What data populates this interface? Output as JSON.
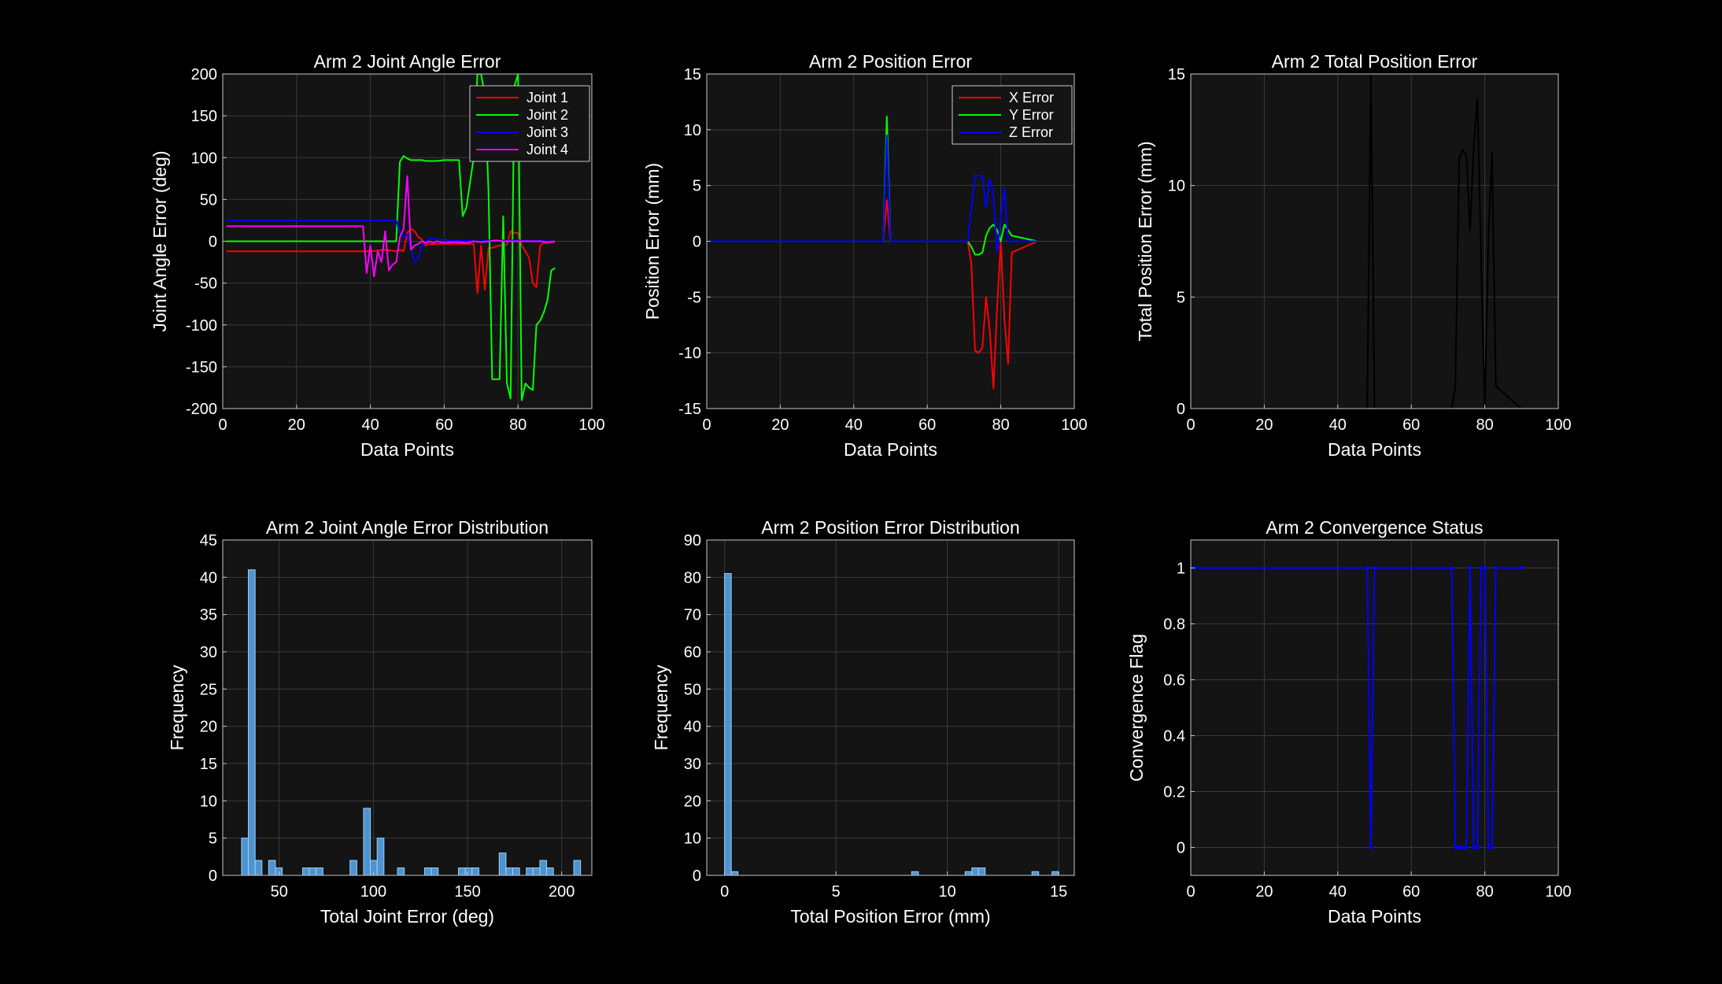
{
  "colors": {
    "background": "#000000",
    "axes_background": "#141414",
    "grid": "#3a3a3a",
    "axes_border": "#c8c8c8",
    "text": "#ffffff",
    "histogram_face": "#4d93d0",
    "histogram_edge": "#9fd0f5"
  },
  "chart_data": [
    {
      "type": "line",
      "title": "Arm 2 Joint Angle Error",
      "xlabel": "Data Points",
      "ylabel": "Joint Angle Error (deg)",
      "xlim": [
        0,
        100
      ],
      "ylim": [
        -200,
        200
      ],
      "xticks": [
        0,
        20,
        40,
        60,
        80,
        100
      ],
      "yticks": [
        -200,
        -150,
        -100,
        -50,
        0,
        50,
        100,
        150,
        200
      ],
      "grid": true,
      "legend": "top-right",
      "series": [
        {
          "name": "Joint 1",
          "color": "#ff0000",
          "x": [
            1,
            40,
            44,
            47,
            48,
            49,
            50,
            51,
            52,
            53,
            54,
            55,
            56,
            57,
            58,
            60,
            62,
            64,
            66,
            68,
            69,
            70,
            71,
            72,
            73,
            74,
            75,
            76,
            77,
            78,
            79,
            80,
            81,
            82,
            83,
            84,
            85,
            86,
            87,
            88,
            89,
            90
          ],
          "y": [
            -12,
            -12,
            -10,
            -12,
            -10,
            -12,
            10,
            15,
            12,
            5,
            2,
            -5,
            -3,
            -4,
            -3,
            -3,
            -3,
            -3,
            -3,
            -3,
            -62,
            -5,
            -58,
            -8,
            -8,
            -6,
            -5,
            -5,
            -4,
            12,
            10,
            10,
            -5,
            -12,
            -20,
            -50,
            -55,
            -5,
            -2,
            -2,
            -1,
            -1
          ]
        },
        {
          "name": "Joint 2",
          "color": "#00ff00",
          "x": [
            1,
            40,
            47,
            48,
            49,
            50,
            51,
            52,
            53,
            54,
            55,
            56,
            57,
            58,
            60,
            62,
            64,
            65,
            66,
            68,
            69,
            70,
            71,
            72,
            73,
            74,
            75,
            76,
            77,
            78,
            79,
            80,
            81,
            82,
            83,
            84,
            85,
            86,
            87,
            88,
            89,
            90
          ],
          "y": [
            0,
            0,
            0,
            95,
            102,
            99,
            97,
            97,
            97,
            97,
            96,
            96,
            96,
            96,
            97,
            97,
            97,
            30,
            40,
            100,
            200,
            200,
            175,
            60,
            -165,
            -165,
            -165,
            30,
            -170,
            -188,
            185,
            200,
            -190,
            -170,
            -175,
            -178,
            -100,
            -95,
            -85,
            -70,
            -35,
            -32
          ]
        },
        {
          "name": "Joint 3",
          "color": "#0000ff",
          "x": [
            1,
            47,
            48,
            49,
            50,
            51,
            52,
            53,
            54,
            55,
            56,
            57,
            58,
            60,
            62,
            64,
            66,
            68,
            70,
            72,
            74,
            76,
            78,
            80,
            82,
            84,
            86,
            88,
            90
          ],
          "y": [
            25,
            25,
            10,
            5,
            8,
            -10,
            -25,
            -20,
            -5,
            0,
            3,
            4,
            2,
            2,
            1,
            1,
            1,
            0,
            0,
            1,
            1,
            1,
            1,
            1,
            1,
            0,
            1,
            0,
            0
          ]
        },
        {
          "name": "Joint 4",
          "color": "#ff00ff",
          "x": [
            1,
            38,
            39,
            40,
            41,
            42,
            43,
            44,
            45,
            46,
            47,
            48,
            49,
            50,
            51,
            52,
            53,
            54,
            55,
            56,
            57,
            58,
            60,
            62,
            64,
            66,
            68,
            70,
            72,
            74,
            76,
            78,
            80,
            82,
            84,
            86,
            88,
            90
          ],
          "y": [
            18,
            18,
            -38,
            -5,
            -42,
            -12,
            -25,
            12,
            -35,
            -28,
            -25,
            5,
            15,
            78,
            -10,
            -5,
            -3,
            0,
            -2,
            0,
            -2,
            0,
            -2,
            -1,
            -1,
            -2,
            0,
            -1,
            0,
            1,
            0,
            0,
            0,
            0,
            0,
            0,
            -1,
            0
          ]
        }
      ]
    },
    {
      "type": "line",
      "title": "Arm 2 Position Error",
      "xlabel": "Data Points",
      "ylabel": "Position Error (mm)",
      "xlim": [
        0,
        100
      ],
      "ylim": [
        -15,
        15
      ],
      "xticks": [
        0,
        20,
        40,
        60,
        80,
        100
      ],
      "yticks": [
        -15,
        -10,
        -5,
        0,
        5,
        10,
        15
      ],
      "grid": true,
      "legend": "top-right",
      "series": [
        {
          "name": "X Error",
          "color": "#ff0000",
          "x": [
            1,
            48,
            49,
            50,
            71,
            72,
            73,
            74,
            75,
            76,
            77,
            78,
            79,
            80,
            81,
            82,
            83,
            90
          ],
          "y": [
            0,
            0,
            3.7,
            0,
            0,
            -2,
            -9.8,
            -10,
            -9.5,
            -5,
            -8,
            -13.2,
            -6,
            0,
            -7,
            -11,
            -1,
            0
          ]
        },
        {
          "name": "Y Error",
          "color": "#00ff00",
          "x": [
            1,
            48,
            49,
            50,
            71,
            72,
            73,
            74,
            75,
            76,
            77,
            78,
            79,
            80,
            81,
            82,
            83,
            90
          ],
          "y": [
            0,
            0,
            11.2,
            0,
            0,
            -0.5,
            -1.2,
            -1.2,
            -1,
            0.5,
            1.2,
            1.5,
            1,
            0,
            1.5,
            1,
            0.5,
            0
          ]
        },
        {
          "name": "Z Error",
          "color": "#0000ff",
          "x": [
            1,
            48,
            49,
            50,
            71,
            72,
            73,
            74,
            75,
            76,
            77,
            78,
            79,
            80,
            81,
            82,
            83,
            90
          ],
          "y": [
            0,
            0,
            9.5,
            0,
            0,
            3,
            5.9,
            5.9,
            5.8,
            3,
            5.6,
            4.2,
            -1,
            2,
            4.8,
            0,
            0,
            0
          ]
        }
      ]
    },
    {
      "type": "line",
      "title": "Arm 2 Total Position Error",
      "xlabel": "Data Points",
      "ylabel": "Total Position Error (mm)",
      "xlim": [
        0,
        100
      ],
      "ylim": [
        0,
        15
      ],
      "xticks": [
        0,
        20,
        40,
        60,
        80,
        100
      ],
      "yticks": [
        0,
        5,
        10,
        15
      ],
      "grid": true,
      "series": [
        {
          "color": "#000000",
          "x": [
            1,
            48,
            49,
            50,
            71,
            72,
            73,
            74,
            75,
            76,
            77,
            78,
            79,
            80,
            81,
            82,
            83,
            90
          ],
          "y": [
            0,
            0,
            15,
            0,
            0,
            1,
            11.2,
            11.6,
            11.3,
            8,
            11.8,
            13.9,
            6.5,
            0,
            8,
            11.5,
            1,
            0
          ]
        }
      ]
    },
    {
      "type": "bar",
      "title": "Arm 2 Joint Angle Error Distribution",
      "xlabel": "Total Joint Error (deg)",
      "ylabel": "Frequency",
      "xlim": [
        20,
        216
      ],
      "ylim": [
        0,
        45
      ],
      "xticks": [
        50,
        100,
        150,
        200
      ],
      "yticks": [
        0,
        5,
        10,
        15,
        20,
        25,
        30,
        35,
        40,
        45
      ],
      "grid": true,
      "bin_width": 3.6,
      "bins": [
        {
          "start": 30.0,
          "count": 5
        },
        {
          "start": 33.6,
          "count": 41
        },
        {
          "start": 37.2,
          "count": 2
        },
        {
          "start": 44.4,
          "count": 2
        },
        {
          "start": 48.0,
          "count": 1
        },
        {
          "start": 62.4,
          "count": 1
        },
        {
          "start": 66.0,
          "count": 1
        },
        {
          "start": 69.6,
          "count": 1
        },
        {
          "start": 87.6,
          "count": 2
        },
        {
          "start": 94.8,
          "count": 9
        },
        {
          "start": 98.4,
          "count": 2
        },
        {
          "start": 102.0,
          "count": 5
        },
        {
          "start": 112.8,
          "count": 1
        },
        {
          "start": 127.2,
          "count": 1
        },
        {
          "start": 130.8,
          "count": 1
        },
        {
          "start": 145.2,
          "count": 1
        },
        {
          "start": 148.8,
          "count": 1
        },
        {
          "start": 152.4,
          "count": 1
        },
        {
          "start": 166.8,
          "count": 3
        },
        {
          "start": 170.4,
          "count": 1
        },
        {
          "start": 174.0,
          "count": 1
        },
        {
          "start": 181.2,
          "count": 1
        },
        {
          "start": 184.8,
          "count": 1
        },
        {
          "start": 188.4,
          "count": 2
        },
        {
          "start": 192.0,
          "count": 1
        },
        {
          "start": 206.4,
          "count": 2
        }
      ]
    },
    {
      "type": "bar",
      "title": "Arm 2 Position Error Distribution",
      "xlabel": "Total Position Error (mm)",
      "ylabel": "Frequency",
      "xlim": [
        -0.8,
        15.7
      ],
      "ylim": [
        0,
        90
      ],
      "xticks": [
        0,
        5,
        10,
        15
      ],
      "yticks": [
        0,
        10,
        20,
        30,
        40,
        50,
        60,
        70,
        80,
        90
      ],
      "grid": true,
      "bin_width": 0.3,
      "bins": [
        {
          "start": 0.0,
          "count": 81
        },
        {
          "start": 0.3,
          "count": 1
        },
        {
          "start": 8.4,
          "count": 1
        },
        {
          "start": 10.8,
          "count": 1
        },
        {
          "start": 11.1,
          "count": 2
        },
        {
          "start": 11.4,
          "count": 2
        },
        {
          "start": 13.8,
          "count": 1
        },
        {
          "start": 14.7,
          "count": 1
        }
      ]
    },
    {
      "type": "line",
      "title": "Arm 2 Convergence Status",
      "xlabel": "Data Points",
      "ylabel": "Convergence Flag",
      "xlim": [
        0,
        100
      ],
      "ylim": [
        -0.1,
        1.1
      ],
      "xticks": [
        0,
        20,
        40,
        60,
        80,
        100
      ],
      "yticks": [
        0,
        0.2,
        0.4,
        0.6,
        0.8,
        1
      ],
      "grid": true,
      "series": [
        {
          "color": "#0000ff",
          "markers": true,
          "x": [
            1,
            48,
            49,
            50,
            71,
            72,
            73,
            74,
            75,
            76,
            77,
            78,
            79,
            80,
            81,
            82,
            83,
            90
          ],
          "y": [
            1,
            1,
            0,
            1,
            1,
            0,
            0,
            0,
            0,
            1,
            0,
            0,
            1,
            1,
            0,
            0,
            1,
            1
          ]
        }
      ]
    }
  ]
}
